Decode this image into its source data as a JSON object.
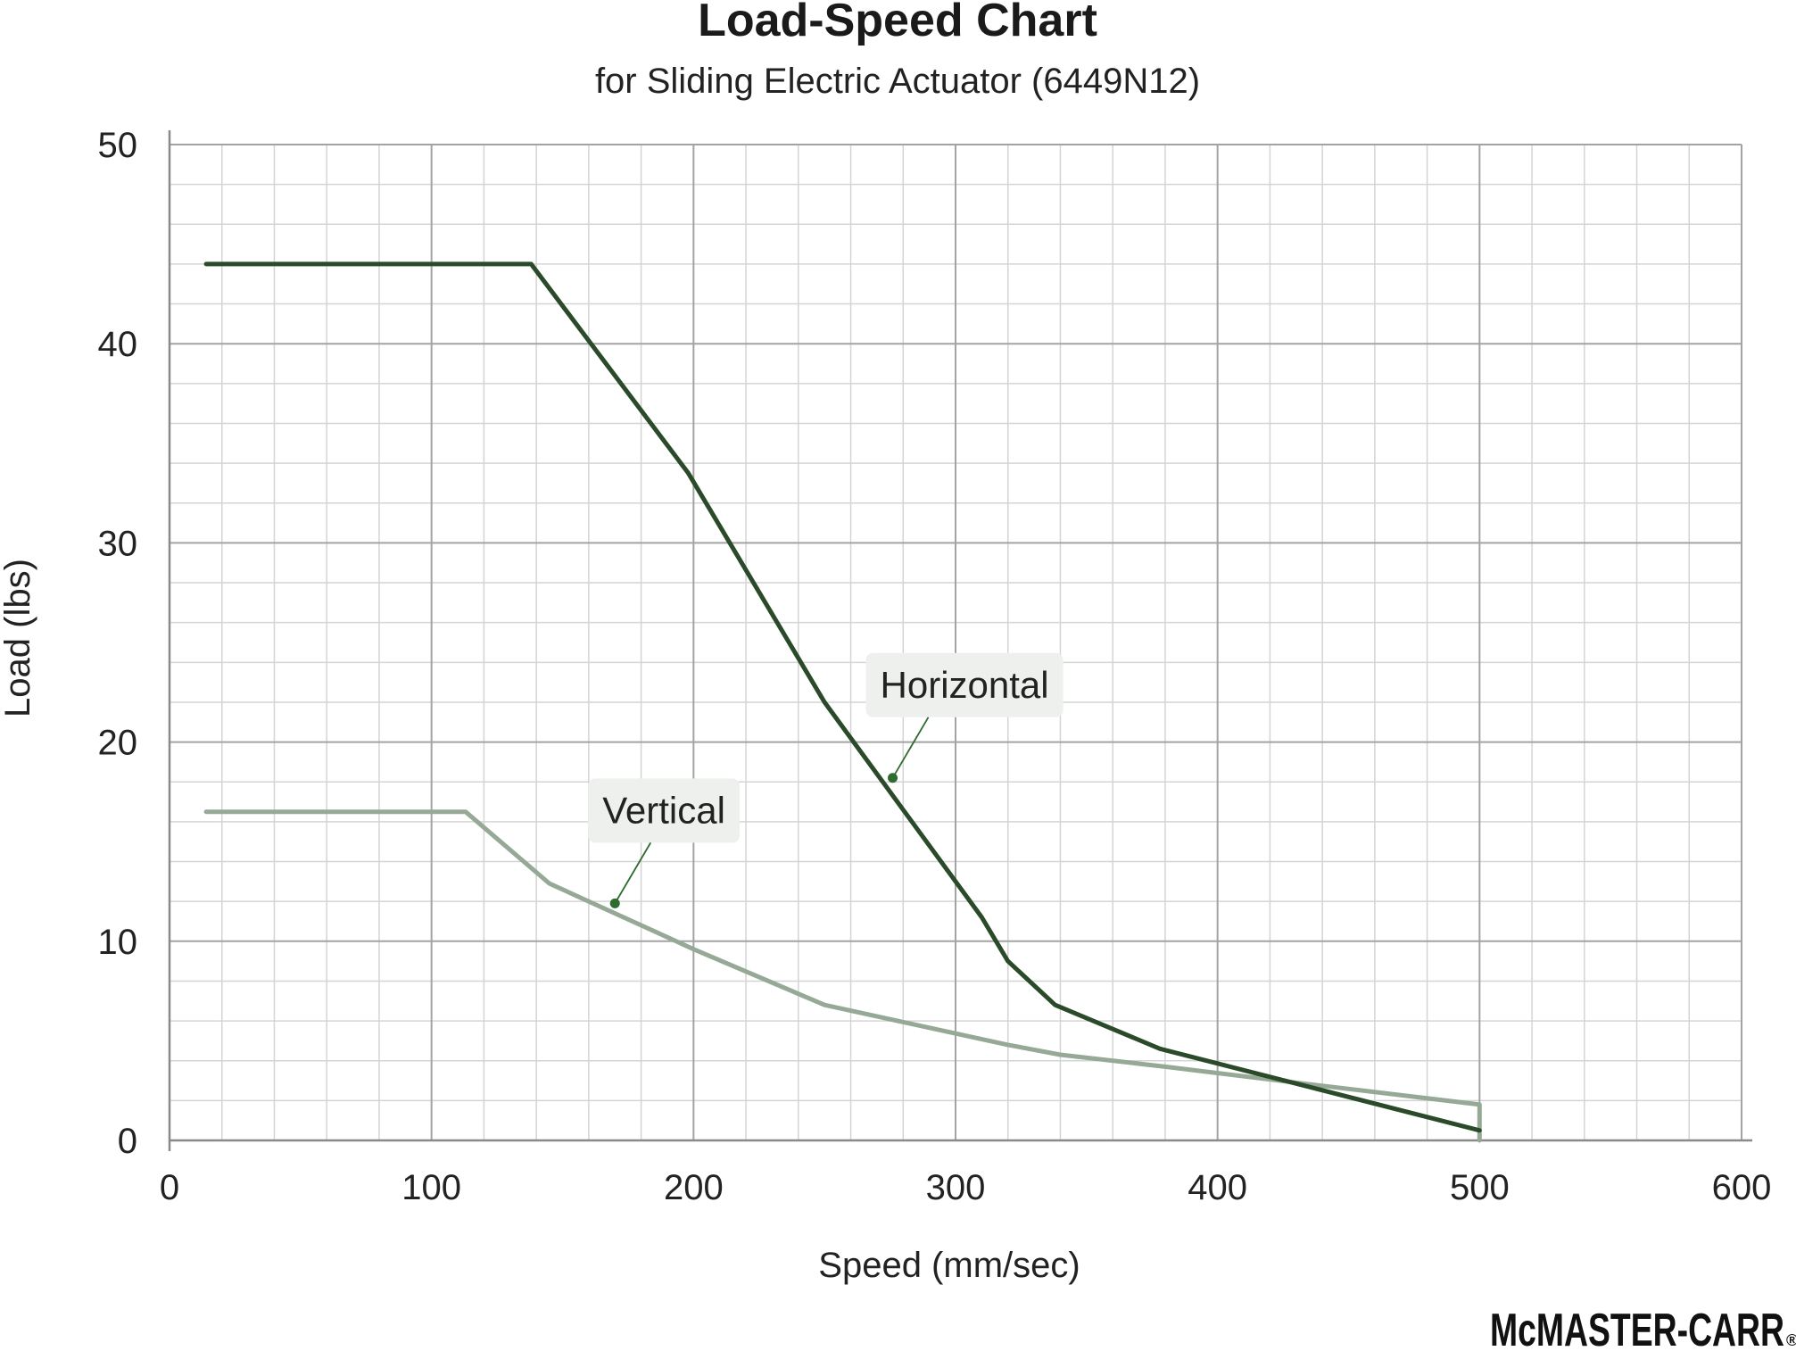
{
  "chart_data": {
    "type": "line",
    "title": "Load-Speed Chart",
    "subtitle": "for Sliding Electric Actuator (6449N12)",
    "xlabel": "Speed (mm/sec)",
    "ylabel": "Load (lbs)",
    "xlim": [
      0,
      600
    ],
    "ylim": [
      0,
      50
    ],
    "xticks": [
      0,
      100,
      200,
      300,
      400,
      500,
      600
    ],
    "yticks": [
      0,
      10,
      20,
      30,
      40,
      50
    ],
    "grid": true,
    "series": [
      {
        "name": "Horizontal",
        "color": "#2a4a2a",
        "x": [
          14,
          138,
          198,
          250,
          310,
          320,
          338,
          378,
          500
        ],
        "y": [
          44,
          44,
          33.5,
          22,
          11.2,
          9,
          6.8,
          4.6,
          0.5
        ]
      },
      {
        "name": "Vertical",
        "color": "#96a896",
        "x": [
          14,
          113,
          145,
          200,
          250,
          320,
          340,
          380,
          430,
          500,
          500
        ],
        "y": [
          16.5,
          16.5,
          12.9,
          9.6,
          6.8,
          4.8,
          4.3,
          3.7,
          2.9,
          1.8,
          0
        ]
      }
    ],
    "annotations": [
      {
        "text": "Horizontal",
        "series": "Horizontal",
        "point": [
          276,
          18.2
        ]
      },
      {
        "text": "Vertical",
        "series": "Vertical",
        "point": [
          170,
          11.9
        ]
      }
    ]
  },
  "brand": {
    "logo_text": "McMASTER-CARR",
    "registered": "®"
  }
}
